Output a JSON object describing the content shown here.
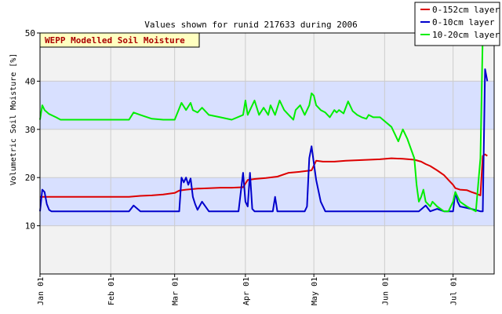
{
  "chart_data": {
    "type": "line",
    "title": "Values shown for runid 217633 during 2006",
    "badge": "WEPP Modelled Soil Moisture",
    "ylabel": "Volumetric Soil Moisture [%]",
    "xlabel": "",
    "ylim": [
      0,
      50
    ],
    "yticks": [
      10,
      20,
      30,
      40,
      50
    ],
    "xlim": [
      1,
      200
    ],
    "xticks": [
      {
        "doy": 1,
        "label": "Jan 01"
      },
      {
        "doy": 32,
        "label": "Feb 01"
      },
      {
        "doy": 60,
        "label": "Mar 01"
      },
      {
        "doy": 91,
        "label": "Apr 01"
      },
      {
        "doy": 121,
        "label": "May 01"
      },
      {
        "doy": 152,
        "label": "Jun 01"
      },
      {
        "doy": 182,
        "label": "Jul 01"
      }
    ],
    "grid": true,
    "legend_position": "top-right",
    "series": [
      {
        "name": "0-152cm layer",
        "color": "#dd0000",
        "x": [
          1,
          3,
          5,
          10,
          20,
          30,
          40,
          45,
          50,
          55,
          60,
          62,
          65,
          70,
          75,
          80,
          85,
          90,
          92,
          95,
          100,
          105,
          110,
          115,
          120,
          122,
          125,
          130,
          135,
          140,
          150,
          155,
          160,
          165,
          168,
          170,
          172,
          175,
          178,
          180,
          182,
          183,
          185,
          188,
          190,
          192,
          194,
          195,
          196,
          197
        ],
        "y": [
          16,
          16,
          16,
          16,
          16,
          16,
          16,
          16.2,
          16.3,
          16.5,
          16.8,
          17.3,
          17.5,
          17.7,
          17.8,
          17.9,
          17.9,
          18,
          19.5,
          19.7,
          19.9,
          20.2,
          21,
          21.2,
          21.5,
          23.5,
          23.3,
          23.3,
          23.5,
          23.6,
          23.8,
          24,
          23.9,
          23.7,
          23.3,
          22.8,
          22.4,
          21.5,
          20.5,
          19.5,
          18.5,
          17.8,
          17.5,
          17.4,
          17,
          16.7,
          16.3,
          24.5,
          24.8,
          24.5
        ]
      },
      {
        "name": "0-10cm layer",
        "color": "#0000cc",
        "x": [
          1,
          2,
          3,
          4,
          5,
          6,
          10,
          20,
          30,
          38,
          40,
          42,
          45,
          50,
          55,
          60,
          62,
          63,
          64,
          65,
          66,
          67,
          68,
          69,
          70,
          72,
          75,
          80,
          85,
          88,
          89,
          90,
          91,
          92,
          93,
          94,
          95,
          96,
          100,
          103,
          104,
          105,
          110,
          115,
          117,
          118,
          119,
          120,
          121,
          122,
          124,
          126,
          130,
          140,
          150,
          160,
          165,
          167,
          170,
          172,
          175,
          178,
          180,
          182,
          183,
          184,
          185,
          190,
          194,
          195,
          196,
          197
        ],
        "y": [
          13,
          17.5,
          17,
          14.5,
          13.3,
          13,
          13,
          13,
          13,
          13,
          13,
          14.2,
          13,
          13,
          13,
          13,
          13,
          20,
          19,
          20,
          18.5,
          19.8,
          16,
          14.5,
          13.3,
          15,
          13,
          13,
          13,
          13,
          17,
          21,
          15,
          14,
          21,
          13.5,
          13,
          13,
          13,
          13,
          16,
          13,
          13,
          13,
          13,
          14,
          24,
          26.5,
          23,
          19.5,
          15,
          13,
          13,
          13,
          13,
          13,
          13,
          13,
          14.2,
          13,
          13.5,
          13,
          13,
          13,
          17,
          15,
          14,
          13.5,
          13,
          13,
          42.5,
          40
        ]
      },
      {
        "name": "10-20cm layer",
        "color": "#00ee00",
        "x": [
          1,
          2,
          3,
          5,
          8,
          10,
          20,
          30,
          40,
          42,
          45,
          50,
          55,
          60,
          63,
          65,
          67,
          68,
          70,
          72,
          75,
          80,
          85,
          90,
          91,
          92,
          93,
          95,
          97,
          99,
          101,
          102,
          104,
          106,
          108,
          110,
          112,
          113,
          115,
          117,
          119,
          120,
          121,
          122,
          124,
          126,
          128,
          130,
          131,
          132,
          134,
          136,
          138,
          140,
          142,
          144,
          145,
          147,
          150,
          155,
          158,
          160,
          162,
          165,
          166,
          167,
          168,
          169,
          170,
          172,
          173,
          175,
          178,
          180,
          182,
          183,
          185,
          188,
          190,
          192,
          194,
          195,
          196,
          197
        ],
        "y": [
          32,
          35,
          34,
          33.2,
          32.5,
          32,
          32,
          32,
          32,
          33.5,
          33,
          32.2,
          32,
          32,
          35.5,
          34,
          35.5,
          34,
          33.5,
          34.5,
          33,
          32.5,
          32,
          33,
          36,
          33,
          34,
          36,
          33,
          34.5,
          33,
          35,
          33,
          36,
          34,
          33,
          32,
          34,
          35,
          33,
          35,
          37.5,
          37,
          35,
          34,
          33.5,
          32.5,
          34,
          33.5,
          34,
          33.3,
          35.8,
          33.8,
          33,
          32.5,
          32.2,
          33,
          32.5,
          32.5,
          30.5,
          27.5,
          30,
          28,
          24,
          18.5,
          15,
          16,
          17.5,
          15,
          14,
          15,
          14,
          13,
          13,
          15,
          17,
          15,
          14,
          13.5,
          13,
          24,
          50,
          49.5,
          49
        ]
      }
    ]
  }
}
